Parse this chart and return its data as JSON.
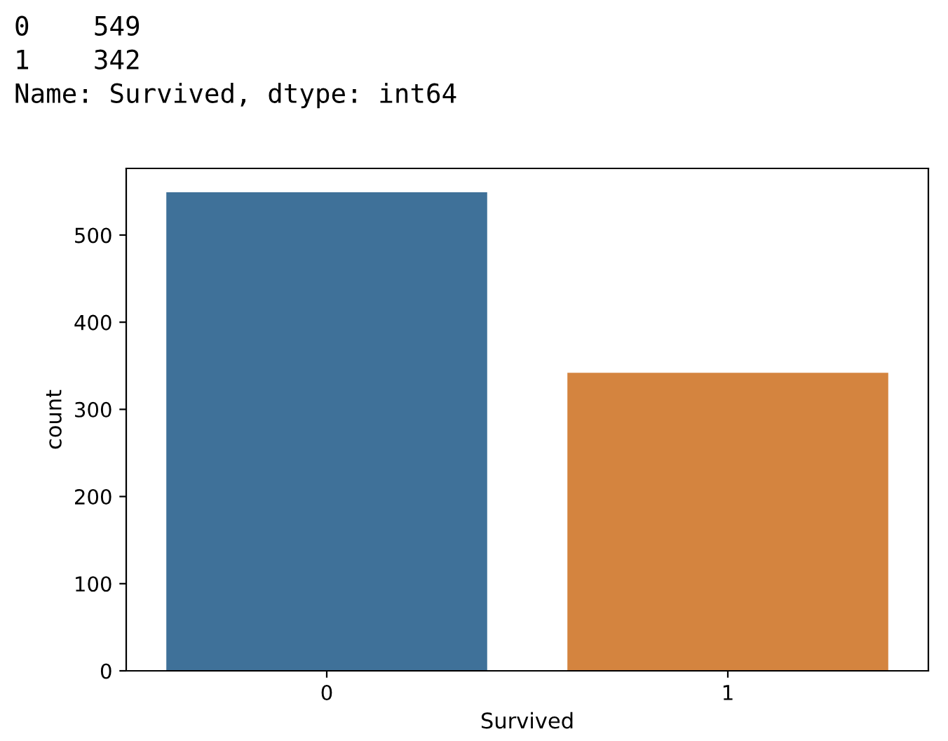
{
  "chart_data": {
    "type": "bar",
    "xlabel": "Survived",
    "ylabel": "count",
    "categories": [
      "0",
      "1"
    ],
    "series": [
      {
        "colors": [
          "#3f7199",
          "#d4843f"
        ],
        "values": [
          549,
          342
        ]
      }
    ],
    "ylim": [
      0,
      576.45
    ],
    "yticks": [
      0,
      100,
      200,
      300,
      400,
      500
    ],
    "grid": false,
    "legend": false,
    "annotations": [
      "0    549",
      "1    342",
      "Name: Survived, dtype: int64"
    ]
  }
}
